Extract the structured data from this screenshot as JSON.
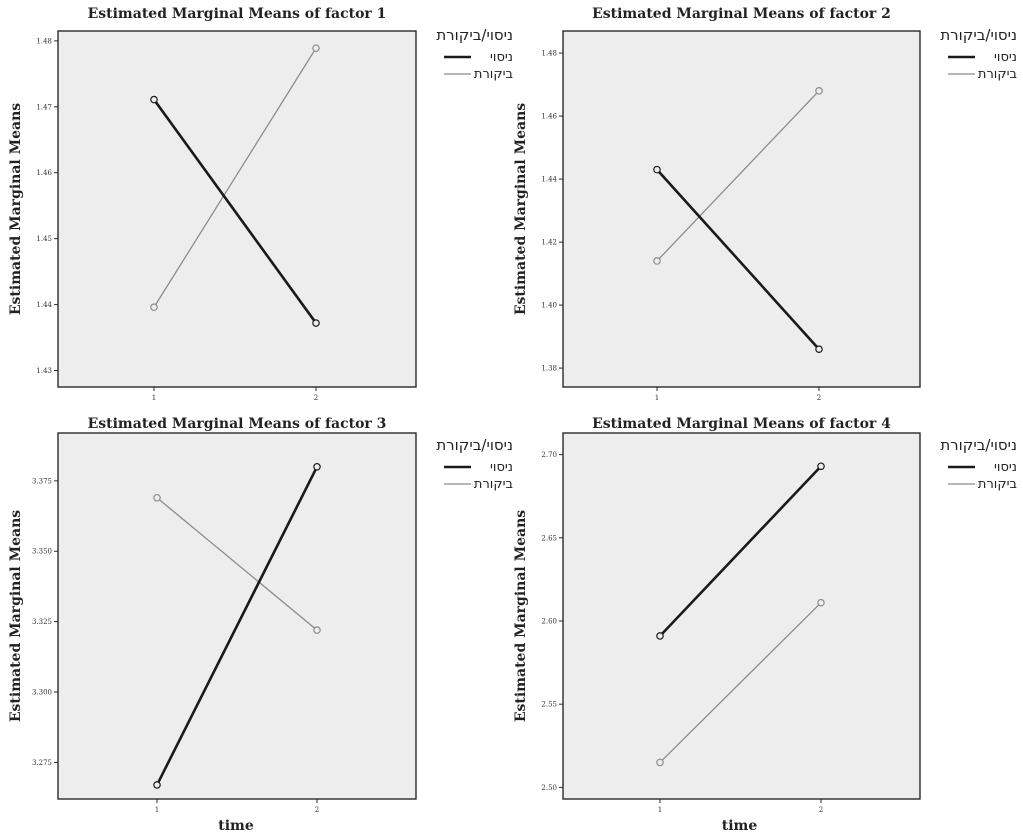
{
  "chart_data": [
    {
      "type": "line",
      "title": "Estimated Marginal Means of factor 1",
      "xlabel": "",
      "ylabel": "Estimated Marginal Means",
      "categories": [
        "1",
        "2"
      ],
      "ylim": [
        1.4275,
        1.4815
      ],
      "yticks": [
        1.48,
        1.47,
        1.46,
        1.45,
        1.44,
        1.43
      ],
      "ytick_labels": [
        "1.48",
        "1.47",
        "1.46",
        "1.45",
        "1.44",
        "1.43"
      ],
      "legend_title": "ניסוי/ביקורת",
      "legend_position": "right",
      "grid": false,
      "series": [
        {
          "name": "ניסוי",
          "values": [
            1.4711,
            1.4372
          ],
          "color": "#1a1a1a"
        },
        {
          "name": "ביקורת",
          "values": [
            1.4396,
            1.4789
          ],
          "color": "#8c8c8c"
        }
      ]
    },
    {
      "type": "line",
      "title": "Estimated Marginal Means of factor 2",
      "xlabel": "",
      "ylabel": "Estimated Marginal Means",
      "categories": [
        "1",
        "2"
      ],
      "ylim": [
        1.374,
        1.487
      ],
      "yticks": [
        1.48,
        1.46,
        1.44,
        1.42,
        1.4,
        1.38
      ],
      "ytick_labels": [
        "1.48",
        "1.46",
        "1.44",
        "1.42",
        "1.40",
        "1.38"
      ],
      "legend_title": "ניסוי/ביקורת",
      "legend_position": "right",
      "grid": false,
      "series": [
        {
          "name": "ניסוי",
          "values": [
            1.443,
            1.386
          ],
          "color": "#1a1a1a"
        },
        {
          "name": "ביקורת",
          "values": [
            1.414,
            1.468
          ],
          "color": "#8c8c8c"
        }
      ]
    },
    {
      "type": "line",
      "title": "Estimated Marginal Means of factor 3",
      "xlabel": "time",
      "ylabel": "Estimated Marginal Means",
      "categories": [
        "1",
        "2"
      ],
      "ylim": [
        3.262,
        3.392
      ],
      "yticks": [
        3.375,
        3.35,
        3.325,
        3.3,
        3.275
      ],
      "ytick_labels": [
        "3.375",
        "3.350",
        "3.325",
        "3.300",
        "3.275"
      ],
      "legend_title": "ניסוי/ביקורת",
      "legend_position": "right",
      "grid": false,
      "series": [
        {
          "name": "ניסוי",
          "values": [
            3.267,
            3.38
          ],
          "color": "#1a1a1a"
        },
        {
          "name": "ביקורת",
          "values": [
            3.369,
            3.322
          ],
          "color": "#8c8c8c"
        }
      ]
    },
    {
      "type": "line",
      "title": "Estimated Marginal Means of factor 4",
      "xlabel": "time",
      "ylabel": "Estimated Marginal Means",
      "categories": [
        "1",
        "2"
      ],
      "ylim": [
        2.493,
        2.713
      ],
      "yticks": [
        2.7,
        2.65,
        2.6,
        2.55,
        2.5
      ],
      "ytick_labels": [
        "2.70",
        "2.65",
        "2.60",
        "2.55",
        "2.50"
      ],
      "legend_title": "ניסוי/ביקורת",
      "legend_position": "right",
      "grid": false,
      "series": [
        {
          "name": "ניסוי",
          "values": [
            2.591,
            2.693
          ],
          "color": "#1a1a1a"
        },
        {
          "name": "ביקורת",
          "values": [
            2.515,
            2.611
          ],
          "color": "#8c8c8c"
        }
      ]
    }
  ]
}
